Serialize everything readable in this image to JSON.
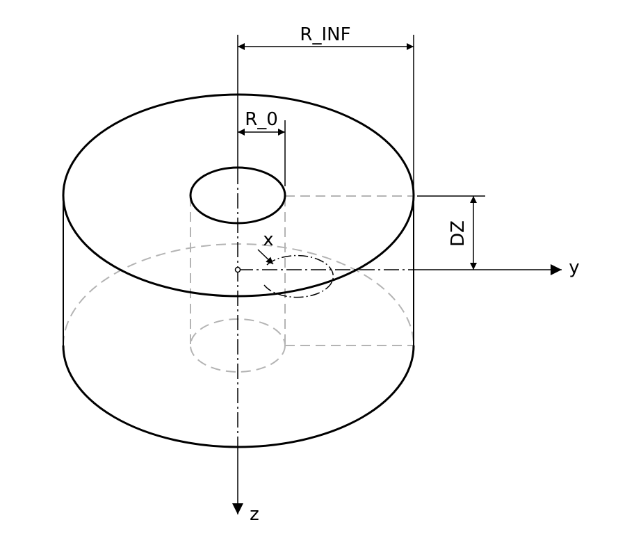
{
  "labels": {
    "r_inf": "R_INF",
    "r_0": "R_0",
    "dz": "DZ",
    "axis_x": "x",
    "axis_y": "y",
    "axis_z": "z"
  },
  "colors": {
    "line": "#000000",
    "hidden": "#b4b4b4",
    "background": "#ffffff"
  }
}
